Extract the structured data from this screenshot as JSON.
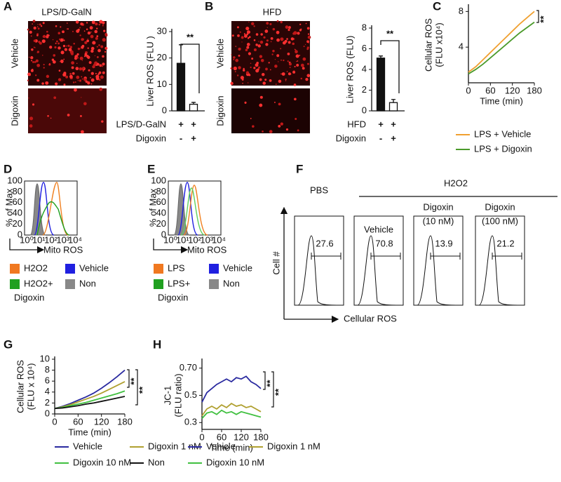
{
  "chart_data": [
    {
      "type": "bar",
      "panel": "A",
      "ylabel": [
        "Liver ROS (FLU )"
      ],
      "categories": [
        null,
        null
      ],
      "values": [
        18,
        2.5
      ],
      "errors": [
        7,
        0.7
      ],
      "colors": [
        "#111111",
        "#ffffff"
      ],
      "ylim": [
        0,
        30
      ],
      "yticks": [
        0,
        10,
        20,
        30
      ],
      "conditions": [
        {
          "label": "LPS/D-GalN",
          "marks": [
            "+",
            "+"
          ]
        },
        {
          "label": "Digoxin",
          "marks": [
            "-",
            "+"
          ]
        }
      ],
      "annotations": [
        "**"
      ]
    },
    {
      "type": "bar",
      "panel": "B",
      "ylabel": [
        "Liver ROS (FLU)"
      ],
      "categories": [
        null,
        null
      ],
      "values": [
        5.1,
        0.8
      ],
      "errors": [
        0.2,
        0.3
      ],
      "colors": [
        "#111111",
        "#ffffff"
      ],
      "ylim": [
        0,
        8
      ],
      "yticks": [
        0,
        2,
        4,
        6,
        8
      ],
      "conditions": [
        {
          "label": "HFD",
          "marks": [
            "+",
            "+"
          ]
        },
        {
          "label": "Digoxin",
          "marks": [
            "-",
            "+"
          ]
        }
      ],
      "annotations": [
        "**"
      ]
    },
    {
      "type": "line",
      "panel": "C",
      "ylabel": [
        "Cellular ROS",
        "(FLU x10⁴)"
      ],
      "xlabel": "Time (min)",
      "x": [
        0,
        20,
        40,
        60,
        80,
        100,
        120,
        140,
        160,
        180
      ],
      "xlim": [
        0,
        180
      ],
      "xticks": [
        0,
        60,
        120,
        180
      ],
      "ylim": [
        0,
        8.5
      ],
      "yticks": [
        4,
        8
      ],
      "series": [
        {
          "name": "LPS + Vehicle",
          "color": "#f0a030",
          "values": [
            1.2,
            1.8,
            2.6,
            3.4,
            4.2,
            5.0,
            5.8,
            6.6,
            7.3,
            8.0
          ]
        },
        {
          "name": "LPS + Digoxin",
          "color": "#4a9a2a",
          "values": [
            1.0,
            1.5,
            2.1,
            2.8,
            3.5,
            4.2,
            4.9,
            5.6,
            6.2,
            6.8
          ]
        }
      ],
      "annotations": [
        "**"
      ]
    },
    {
      "type": "line",
      "panel": "G",
      "ylabel": [
        "Cellular ROS",
        "(FLU x 10⁴)"
      ],
      "xlabel": "Time (min)",
      "x": [
        0,
        20,
        40,
        60,
        80,
        100,
        120,
        140,
        160,
        180
      ],
      "xlim": [
        0,
        180
      ],
      "xticks": [
        0,
        60,
        120,
        180
      ],
      "ylim": [
        0,
        10
      ],
      "yticks": [
        0,
        2,
        4,
        6,
        8,
        10
      ],
      "series": [
        {
          "name": "Vehicle",
          "color": "#2a2aa0",
          "values": [
            1,
            1.4,
            1.9,
            2.5,
            3.1,
            3.8,
            4.7,
            5.7,
            6.8,
            8.0
          ]
        },
        {
          "name": "Digoxin 1 nM",
          "color": "#b0a030",
          "values": [
            1,
            1.3,
            1.7,
            2.2,
            2.7,
            3.2,
            3.8,
            4.5,
            5.2,
            5.9
          ]
        },
        {
          "name": "Digoxin 10 nM",
          "color": "#40c040",
          "values": [
            1,
            1.2,
            1.5,
            1.8,
            2.1,
            2.5,
            2.9,
            3.3,
            3.7,
            4.2
          ]
        },
        {
          "name": "Non",
          "color": "#111111",
          "values": [
            1,
            1.1,
            1.3,
            1.5,
            1.8,
            2.0,
            2.3,
            2.6,
            2.9,
            3.2
          ]
        }
      ],
      "annotations": [
        "**",
        "**"
      ]
    },
    {
      "type": "line",
      "panel": "H",
      "ylabel": [
        "JC-1",
        "(FLU ratio)"
      ],
      "xlabel": "Time (min)",
      "x": [
        0,
        15,
        30,
        45,
        60,
        75,
        90,
        105,
        120,
        135,
        150,
        165,
        180
      ],
      "xlim": [
        0,
        180
      ],
      "xticks": [
        0,
        60,
        120,
        180
      ],
      "ylim": [
        0.25,
        0.75
      ],
      "yticks": [
        0.3,
        0.5,
        {
          "value": 0.7,
          "label": "0.70"
        }
      ],
      "series": [
        {
          "name": "Vehicle",
          "color": "#2a2aa0",
          "values": [
            0.45,
            0.52,
            0.55,
            0.58,
            0.6,
            0.62,
            0.6,
            0.63,
            0.62,
            0.64,
            0.6,
            0.58,
            0.55
          ]
        },
        {
          "name": "Digoxin 1 nM",
          "color": "#b0a030",
          "values": [
            0.35,
            0.4,
            0.42,
            0.4,
            0.43,
            0.41,
            0.44,
            0.42,
            0.43,
            0.41,
            0.42,
            0.4,
            0.38
          ]
        },
        {
          "name": "Digoxin 10 nM",
          "color": "#40c040",
          "values": [
            0.33,
            0.37,
            0.38,
            0.36,
            0.39,
            0.37,
            0.38,
            0.36,
            0.38,
            0.37,
            0.36,
            0.35,
            0.34
          ]
        }
      ],
      "annotations": [
        "**",
        "**"
      ]
    }
  ],
  "panels": {
    "A": {
      "image_title": "LPS/D-GalN",
      "rows": [
        "Vehicle",
        "Digoxin"
      ]
    },
    "B": {
      "image_title": "HFD",
      "rows": [
        "Vehicle",
        "Digoxin"
      ]
    },
    "D": {
      "label": "D",
      "ylabel": "% of Max",
      "xlabel": "Mito ROS",
      "yticks": [
        "100",
        "80",
        "60",
        "40",
        "20",
        "0"
      ],
      "xticks": [
        "10⁰",
        "10¹",
        "10²",
        "10³",
        "10⁴"
      ],
      "legend": [
        "H2O2",
        "Vehicle",
        "H2O2+",
        "Non"
      ],
      "legend_extra": "Digoxin"
    },
    "E": {
      "label": "E",
      "ylabel": "% of Max",
      "xlabel": "Mito ROS",
      "yticks": [
        "100",
        "80",
        "60",
        "40",
        "20",
        "0"
      ],
      "xticks": [
        "10⁰",
        "10¹",
        "10²",
        "10³",
        "10⁴"
      ],
      "legend": [
        "LPS",
        "Vehicle",
        "LPS+",
        "Non"
      ],
      "legend_extra": "Digoxin"
    },
    "F": {
      "label": "F",
      "control": "PBS",
      "treatment": "H2O2",
      "boxes": [
        {
          "title": [],
          "value": 27.6
        },
        {
          "title": [
            "Vehicle"
          ],
          "value": 70.8
        },
        {
          "title": [
            "Digoxin",
            "(10 nM)"
          ],
          "value": 13.9
        },
        {
          "title": [
            "Digoxin",
            "(100 nM)"
          ],
          "value": 21.2
        }
      ],
      "ylabel": "Cell #",
      "xlabel": "Cellular ROS"
    }
  }
}
